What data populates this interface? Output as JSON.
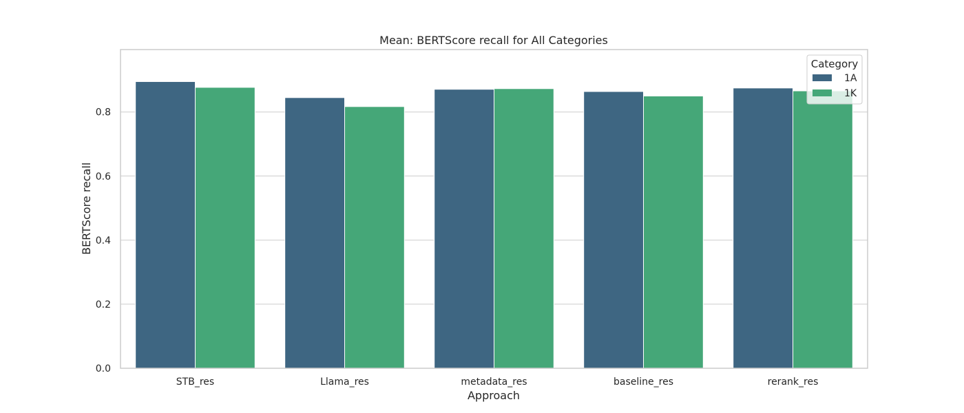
{
  "chart_data": {
    "type": "bar",
    "title": "Mean: BERTScore recall for All Categories",
    "xlabel": "Approach",
    "ylabel": "BERTScore recall",
    "categories": [
      "STB_res",
      "Llama_res",
      "metadata_res",
      "baseline_res",
      "rerank_res"
    ],
    "series": [
      {
        "name": "1A",
        "color": "#3e6682",
        "values": [
          0.895,
          0.845,
          0.871,
          0.864,
          0.875
        ]
      },
      {
        "name": "1K",
        "color": "#45a778",
        "values": [
          0.877,
          0.817,
          0.873,
          0.85,
          0.866
        ]
      }
    ],
    "ylim": [
      0,
      0.995
    ],
    "yticks": [
      0.0,
      0.2,
      0.4,
      0.6,
      0.8
    ],
    "ytick_labels": [
      "0.0",
      "0.2",
      "0.4",
      "0.6",
      "0.8"
    ],
    "grid": "horizontal",
    "legend_title": "Category",
    "legend_position": "top-right"
  }
}
